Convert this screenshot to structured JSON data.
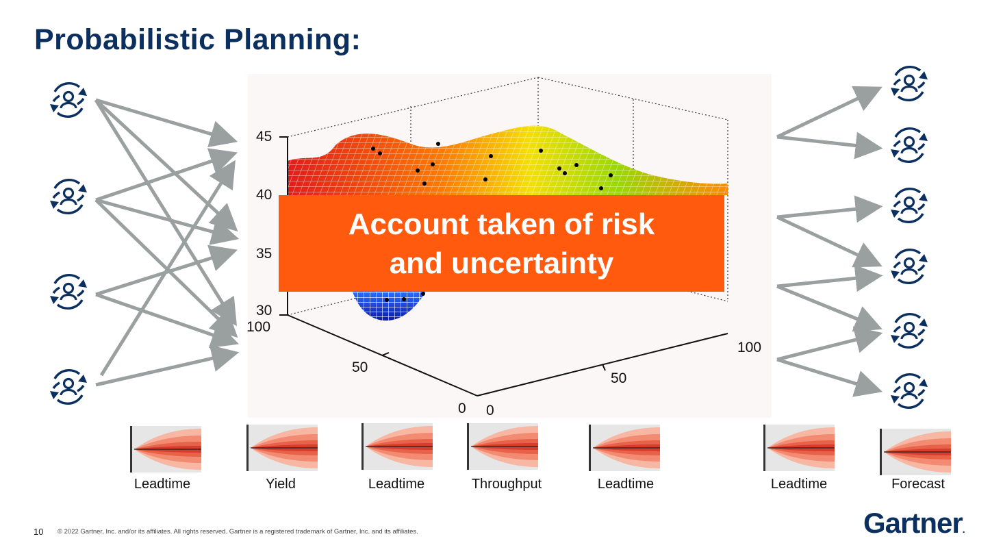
{
  "slide": {
    "title": "Probabilistic Planning:",
    "callout_line1": "Account taken of risk",
    "callout_line2": "and uncertainty",
    "page_number": "10",
    "copyright": "© 2022 Gartner, Inc. and/or its affiliates. All rights reserved. Gartner is a registered trademark of Gartner, Inc. and its affiliates.",
    "logo_text": "Gartner",
    "logo_mark": "."
  },
  "surface_plot": {
    "z_ticks": [
      "45",
      "40",
      "35",
      "30"
    ],
    "left_axis_ticks": [
      "100",
      "50",
      "0"
    ],
    "right_axis_ticks": [
      "0",
      "50",
      "100"
    ]
  },
  "fan_charts": [
    {
      "label": "Leadtime"
    },
    {
      "label": "Yield"
    },
    {
      "label": "Leadtime"
    },
    {
      "label": "Throughput"
    },
    {
      "label": "Leadtime"
    },
    {
      "label": "Leadtime"
    },
    {
      "label": "Forecast"
    }
  ],
  "icons": {
    "left_nodes": "person-cycle-icon",
    "right_nodes": "person-cycle-icon"
  },
  "colors": {
    "title": "#0b2f5e",
    "callout": "#ff5a0d",
    "arrows": "#9aa0a0",
    "icon": "#0b2f5e"
  }
}
